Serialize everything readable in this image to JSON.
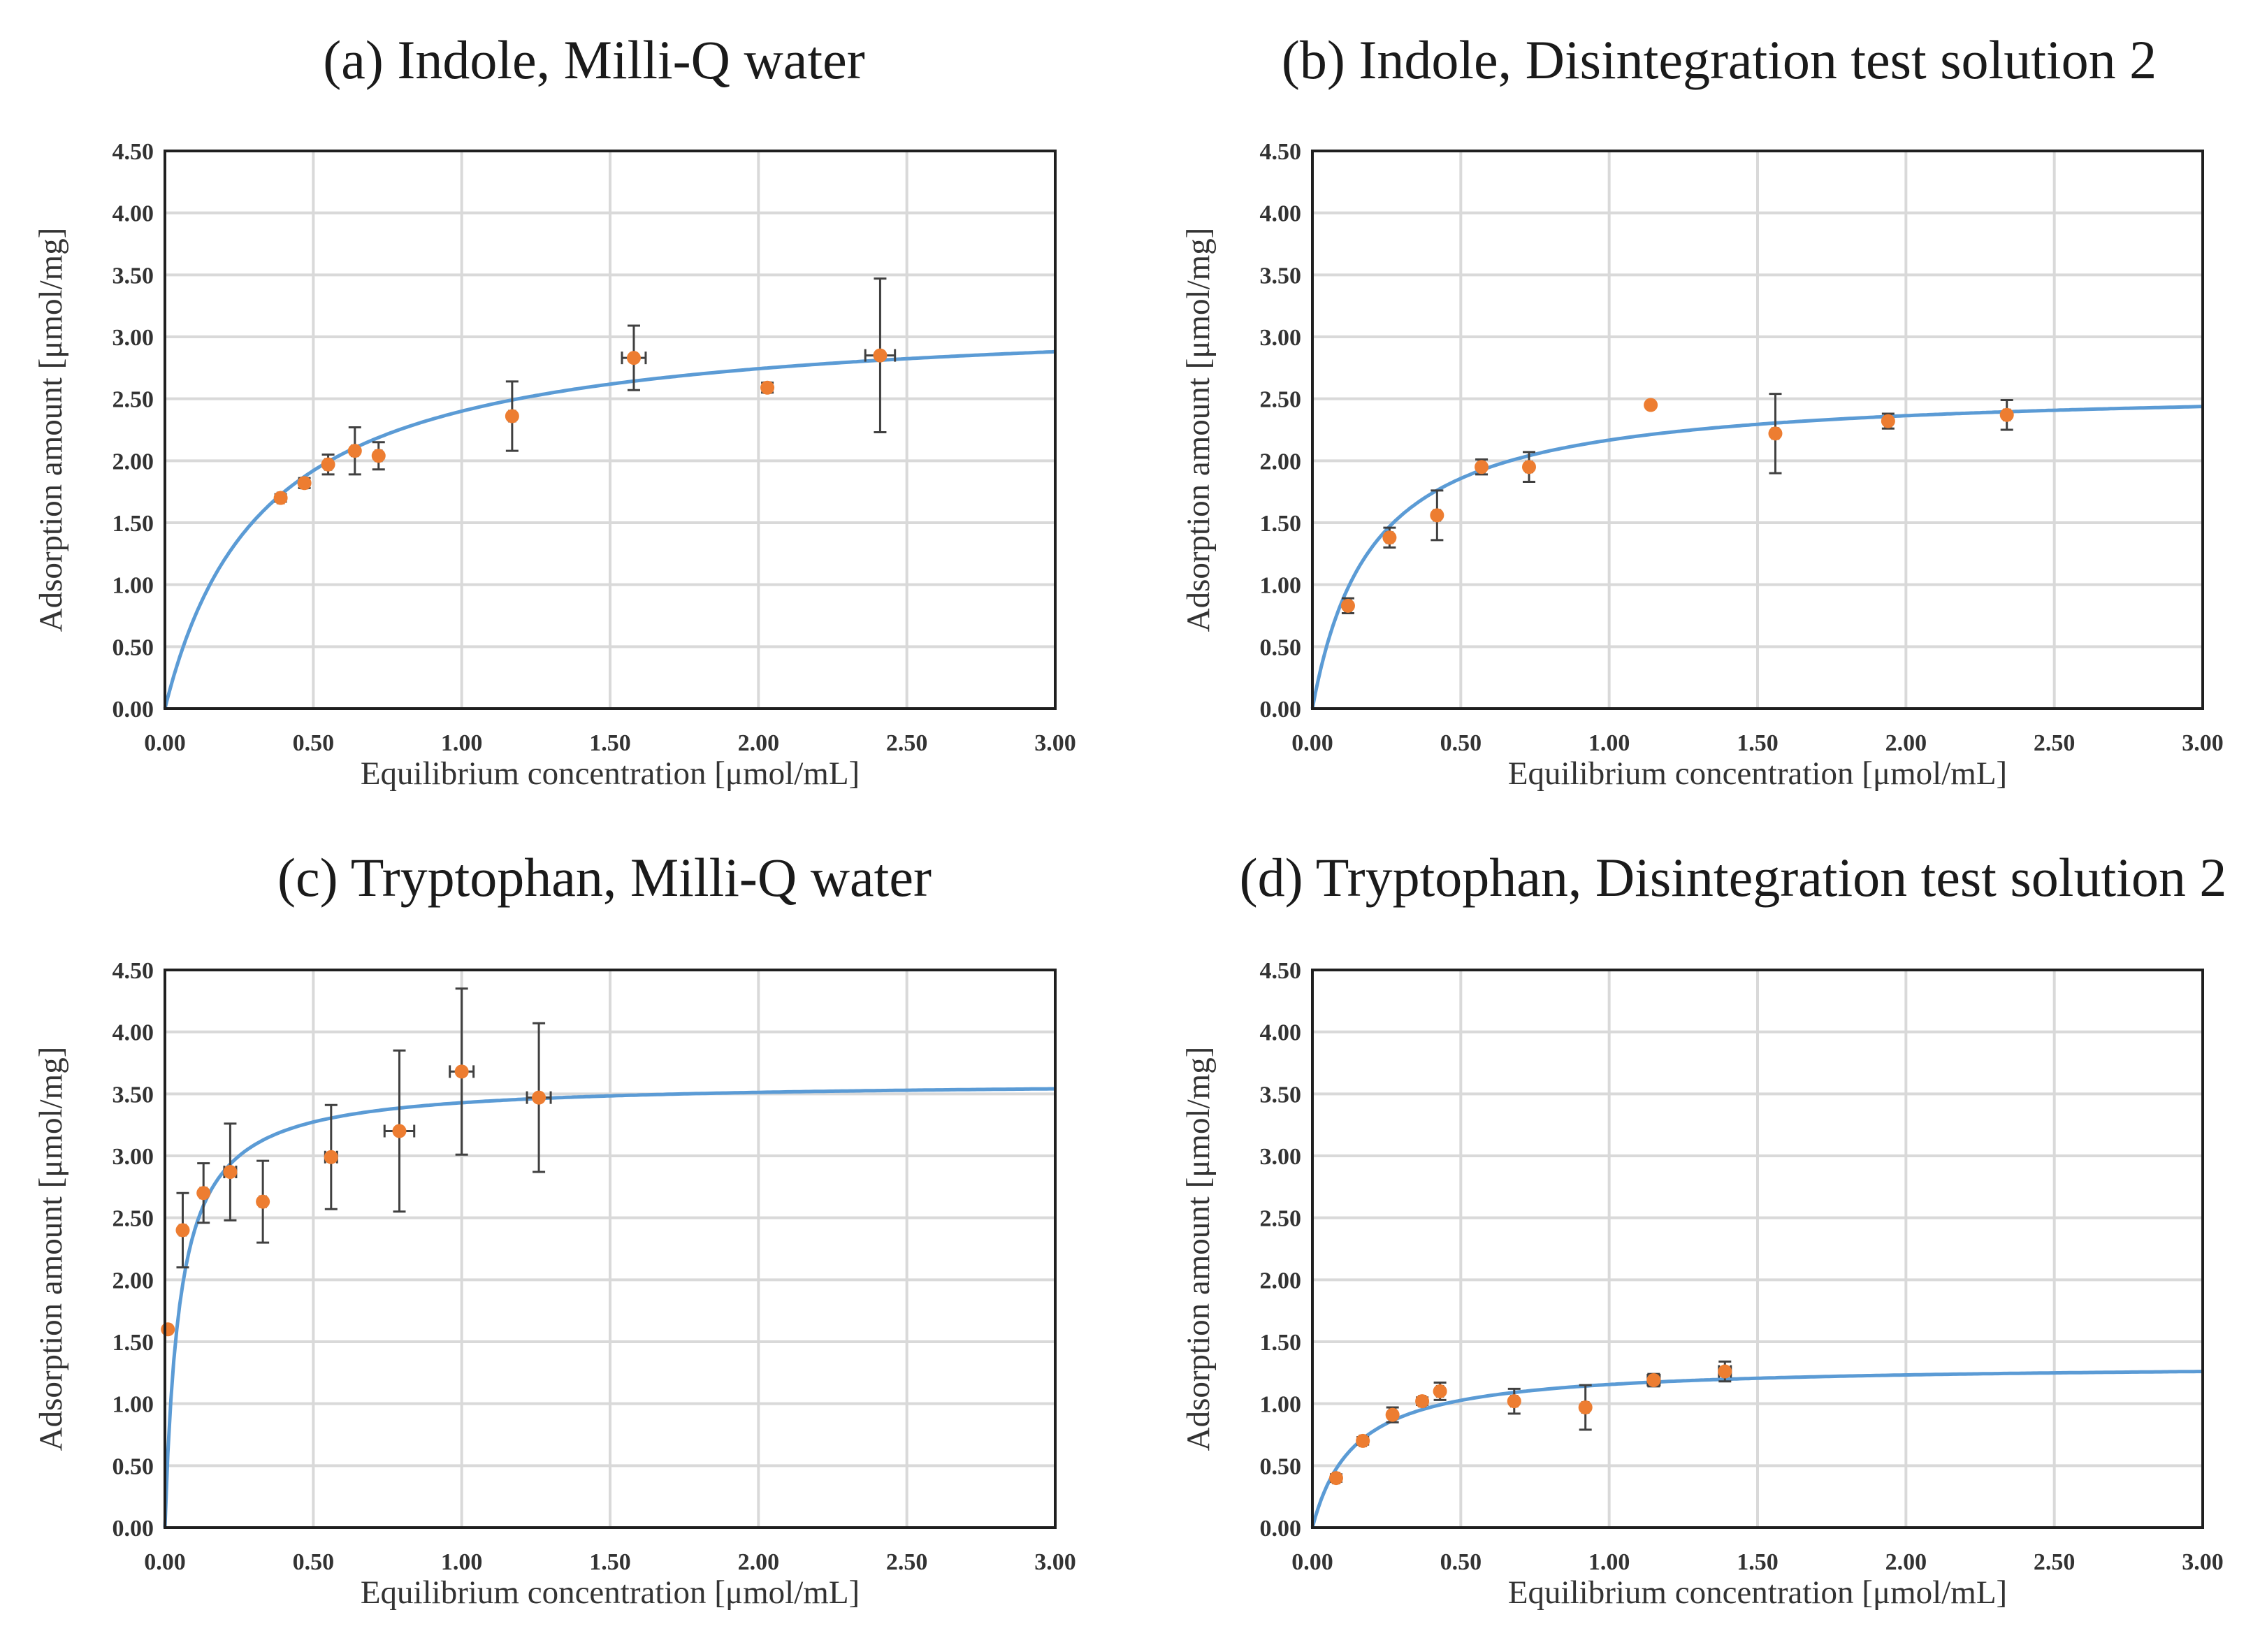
{
  "colors": {
    "fit_line": "#5b9bd5",
    "points": "#ed7d31",
    "error_bars": "#404040"
  },
  "chart_data": [
    {
      "type": "scatter",
      "title": "(a) Indole, Milli-Q water",
      "xlabel": "Equilibrium  concentration   [μmol/mL]",
      "ylabel": "Adsorption  amount   [μmol/mg]",
      "xlim": [
        0,
        3.0
      ],
      "ylim": [
        0,
        4.5
      ],
      "xticks": [
        "0.00",
        "0.50",
        "1.00",
        "1.50",
        "2.00",
        "2.50",
        "3.00"
      ],
      "yticks": [
        "0.00",
        "0.50",
        "1.00",
        "1.50",
        "2.00",
        "2.50",
        "3.00",
        "3.50",
        "4.00",
        "4.50"
      ],
      "grid": true,
      "fit": {
        "model": "langmuir",
        "qmax": 3.2,
        "K": 3.0
      },
      "points": [
        {
          "x": 0.39,
          "y": 1.7,
          "yerr": 0.03,
          "xerr": 0.01
        },
        {
          "x": 0.47,
          "y": 1.82,
          "yerr": 0.04,
          "xerr": 0.01
        },
        {
          "x": 0.55,
          "y": 1.97,
          "yerr": 0.08,
          "xerr": 0.01
        },
        {
          "x": 0.64,
          "y": 2.08,
          "yerr": 0.19,
          "xerr": 0.01
        },
        {
          "x": 0.72,
          "y": 2.04,
          "yerr": 0.11,
          "xerr": 0.01
        },
        {
          "x": 1.17,
          "y": 2.36,
          "yerr": 0.28,
          "xerr": 0.01
        },
        {
          "x": 1.58,
          "y": 2.83,
          "yerr": 0.26,
          "xerr": 0.04
        },
        {
          "x": 2.03,
          "y": 2.59,
          "yerr": 0.04,
          "xerr": 0.01
        },
        {
          "x": 2.41,
          "y": 2.85,
          "yerr": 0.62,
          "xerr": 0.05
        }
      ]
    },
    {
      "type": "scatter",
      "title": "(b) Indole, Disintegration test solution 2",
      "xlabel": "Equilibrium  concentration   [μmol/mL]",
      "ylabel": "Adsorption  amount   [μmol/mg]",
      "xlim": [
        0,
        3.0
      ],
      "ylim": [
        0,
        4.5
      ],
      "xticks": [
        "0.00",
        "0.50",
        "1.00",
        "1.50",
        "2.00",
        "2.50",
        "3.00"
      ],
      "yticks": [
        "0.00",
        "0.50",
        "1.00",
        "1.50",
        "2.00",
        "2.50",
        "3.00",
        "3.50",
        "4.00",
        "4.50"
      ],
      "grid": true,
      "fit": {
        "model": "langmuir",
        "qmax": 2.6,
        "K": 5.0
      },
      "points": [
        {
          "x": 0.12,
          "y": 0.83,
          "yerr": 0.06,
          "xerr": 0.01
        },
        {
          "x": 0.26,
          "y": 1.38,
          "yerr": 0.08,
          "xerr": 0.01
        },
        {
          "x": 0.42,
          "y": 1.56,
          "yerr": 0.2,
          "xerr": 0.01
        },
        {
          "x": 0.57,
          "y": 1.95,
          "yerr": 0.06,
          "xerr": 0.01
        },
        {
          "x": 0.73,
          "y": 1.95,
          "yerr": 0.12,
          "xerr": 0.01
        },
        {
          "x": 1.14,
          "y": 2.45,
          "yerr": 0.0,
          "xerr": 0.0
        },
        {
          "x": 1.56,
          "y": 2.22,
          "yerr": 0.32,
          "xerr": 0.01
        },
        {
          "x": 1.94,
          "y": 2.32,
          "yerr": 0.06,
          "xerr": 0.01
        },
        {
          "x": 2.34,
          "y": 2.37,
          "yerr": 0.12,
          "xerr": 0.01
        }
      ]
    },
    {
      "type": "scatter",
      "title": "(c) Tryptophan, Milli-Q water",
      "xlabel": "Equilibrium  concentration   [μmol/mL]",
      "ylabel": "Adsorption  amount   [μmol/mg]",
      "xlim": [
        0,
        3.0
      ],
      "ylim": [
        0,
        4.5
      ],
      "xticks": [
        "0.00",
        "0.50",
        "1.00",
        "1.50",
        "2.00",
        "2.50",
        "3.00"
      ],
      "yticks": [
        "0.00",
        "0.50",
        "1.00",
        "1.50",
        "2.00",
        "2.50",
        "3.00",
        "3.50",
        "4.00",
        "4.50"
      ],
      "grid": true,
      "fit": {
        "model": "langmuir",
        "qmax": 3.6,
        "K": 20.0
      },
      "points": [
        {
          "x": 0.01,
          "y": 1.6,
          "yerr": 0.0,
          "xerr": 0.0
        },
        {
          "x": 0.06,
          "y": 2.4,
          "yerr": 0.3,
          "xerr": 0.01
        },
        {
          "x": 0.13,
          "y": 2.7,
          "yerr": 0.24,
          "xerr": 0.01
        },
        {
          "x": 0.22,
          "y": 2.87,
          "yerr": 0.39,
          "xerr": 0.02
        },
        {
          "x": 0.33,
          "y": 2.63,
          "yerr": 0.33,
          "xerr": 0.01
        },
        {
          "x": 0.56,
          "y": 2.99,
          "yerr": 0.42,
          "xerr": 0.02
        },
        {
          "x": 0.79,
          "y": 3.2,
          "yerr": 0.65,
          "xerr": 0.05
        },
        {
          "x": 1.0,
          "y": 3.68,
          "yerr": 0.67,
          "xerr": 0.04
        },
        {
          "x": 1.26,
          "y": 3.47,
          "yerr": 0.6,
          "xerr": 0.04
        }
      ]
    },
    {
      "type": "scatter",
      "title": "(d) Tryptophan, Disintegration test solution 2",
      "xlabel": "Equilibrium  concentration   [μmol/mL]",
      "ylabel": "Adsorption  amount   [μmol/mg]",
      "xlim": [
        0,
        3.0
      ],
      "ylim": [
        0,
        4.5
      ],
      "xticks": [
        "0.00",
        "0.50",
        "1.00",
        "1.50",
        "2.00",
        "2.50",
        "3.00"
      ],
      "yticks": [
        "0.00",
        "0.50",
        "1.00",
        "1.50",
        "2.00",
        "2.50",
        "3.00",
        "3.50",
        "4.00",
        "4.50"
      ],
      "grid": true,
      "fit": {
        "model": "langmuir",
        "qmax": 1.32,
        "K": 7.0
      },
      "points": [
        {
          "x": 0.08,
          "y": 0.4,
          "yerr": 0.03,
          "xerr": 0.01
        },
        {
          "x": 0.17,
          "y": 0.7,
          "yerr": 0.03,
          "xerr": 0.01
        },
        {
          "x": 0.27,
          "y": 0.91,
          "yerr": 0.06,
          "xerr": 0.01
        },
        {
          "x": 0.37,
          "y": 1.02,
          "yerr": 0.03,
          "xerr": 0.01
        },
        {
          "x": 0.43,
          "y": 1.1,
          "yerr": 0.07,
          "xerr": 0.01
        },
        {
          "x": 0.68,
          "y": 1.02,
          "yerr": 0.1,
          "xerr": 0.01
        },
        {
          "x": 0.92,
          "y": 0.97,
          "yerr": 0.18,
          "xerr": 0.01
        },
        {
          "x": 1.15,
          "y": 1.19,
          "yerr": 0.05,
          "xerr": 0.02
        },
        {
          "x": 1.39,
          "y": 1.26,
          "yerr": 0.08,
          "xerr": 0.02
        }
      ]
    }
  ]
}
